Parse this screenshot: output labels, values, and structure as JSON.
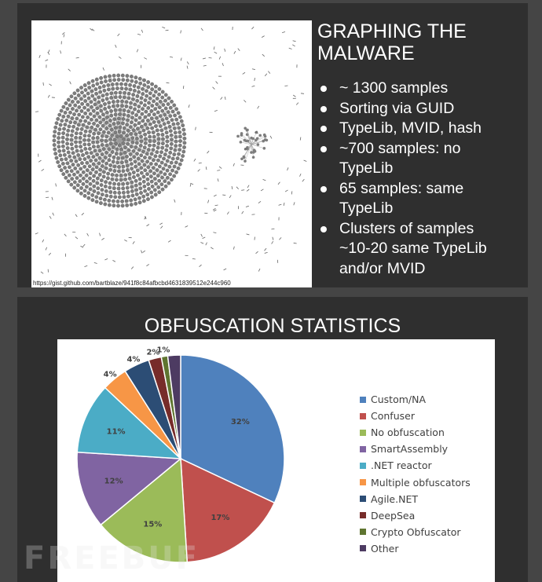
{
  "slide1": {
    "title_lines": [
      "GRAPHING THE",
      "MALWARE"
    ],
    "bullets": [
      [
        "~ 1300 samples"
      ],
      [
        "Sorting via GUID"
      ],
      [
        "TypeLib, MVID, hash"
      ],
      [
        "~700 samples: no",
        "TypeLib"
      ],
      [
        "65 samples: same",
        "TypeLib"
      ],
      [
        "Clusters of samples",
        "~10-20 same TypeLib",
        "and/or MVID"
      ]
    ],
    "image_caption": "https://gist.github.com/bartblaze/941f8c84afbcbd4631839512e244c960"
  },
  "slide2": {
    "title": "OBFUSCATION STATISTICS"
  },
  "chart_data": {
    "type": "pie",
    "title": "OBFUSCATION STATISTICS",
    "start_angle_deg": 0,
    "direction": "clockwise",
    "legend_position": "right",
    "slices": [
      {
        "label": "Custom/NA",
        "value": 32,
        "value_label": "32%",
        "color": "#4f81bd"
      },
      {
        "label": "Confuser",
        "value": 17,
        "value_label": "17%",
        "color": "#c0504d"
      },
      {
        "label": "No obfuscation",
        "value": 15,
        "value_label": "15%",
        "color": "#9bbb59"
      },
      {
        "label": "SmartAssembly",
        "value": 12,
        "value_label": "12%",
        "color": "#8064a2"
      },
      {
        "label": ".NET reactor",
        "value": 11,
        "value_label": "11%",
        "color": "#4bacc6"
      },
      {
        "label": "Multiple obfuscators",
        "value": 4,
        "value_label": "4%",
        "color": "#f79646"
      },
      {
        "label": "Agile.NET",
        "value": 4,
        "value_label": "4%",
        "color": "#2c4d75"
      },
      {
        "label": "DeepSea",
        "value": 2,
        "value_label": "2%",
        "color": "#772c2a"
      },
      {
        "label": "Crypto Obfuscator",
        "value": 1,
        "value_label": "1%",
        "color": "#5f7530"
      },
      {
        "label": "Other",
        "value": 2,
        "value_label": "",
        "color": "#4d3b62"
      }
    ]
  },
  "watermark": "FREEBUF"
}
